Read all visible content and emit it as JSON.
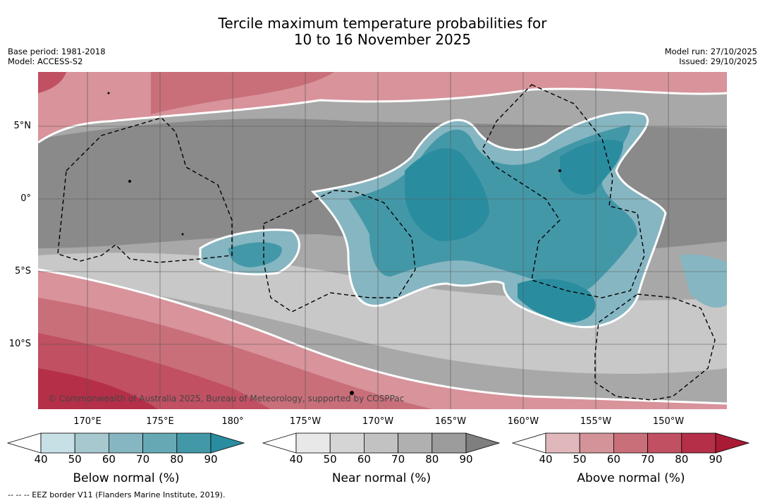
{
  "title_line1": "Tercile maximum temperature probabilities for",
  "title_line2": "10 to 16 November 2025",
  "base_period": "Base period: 1981-2018",
  "model": "Model: ACCESS-S2",
  "model_run": "Model run: 27/10/2025",
  "issued": "Issued: 29/10/2025",
  "lat_labels": [
    "5°N",
    "0°",
    "5°S",
    "10°S"
  ],
  "lon_labels": [
    "170°E",
    "175°E",
    "180°",
    "175°W",
    "170°W",
    "165°W",
    "160°W",
    "155°W",
    "150°W"
  ],
  "copyright": "© Commonwealth of Australia 2025, Bureau of Meteorology, supported by COSPPac",
  "footnote": "-- -- -- EEZ border V11 (Flanders Marine Institute, 2019).",
  "colorbars": [
    {
      "title": "Below normal (%)",
      "ticks": [
        "40",
        "50",
        "60",
        "70",
        "80",
        "90"
      ],
      "colors": [
        "#ffffff",
        "#c6e0e6",
        "#a6c8ce",
        "#86b6c1",
        "#66a9b5",
        "#4398a8",
        "#2a8d9f"
      ]
    },
    {
      "title": "Near normal (%)",
      "ticks": [
        "40",
        "50",
        "60",
        "70",
        "80",
        "90"
      ],
      "colors": [
        "#ffffff",
        "#e8e8e8",
        "#d5d5d5",
        "#c2c2c2",
        "#b0b0b0",
        "#9c9c9c",
        "#7f7f7f"
      ]
    },
    {
      "title": "Above normal (%)",
      "ticks": [
        "40",
        "50",
        "60",
        "70",
        "80",
        "90"
      ],
      "colors": [
        "#ffffff",
        "#e0b8bc",
        "#d49299",
        "#c96f7a",
        "#c05062",
        "#b52f48",
        "#a91a35"
      ]
    }
  ]
}
